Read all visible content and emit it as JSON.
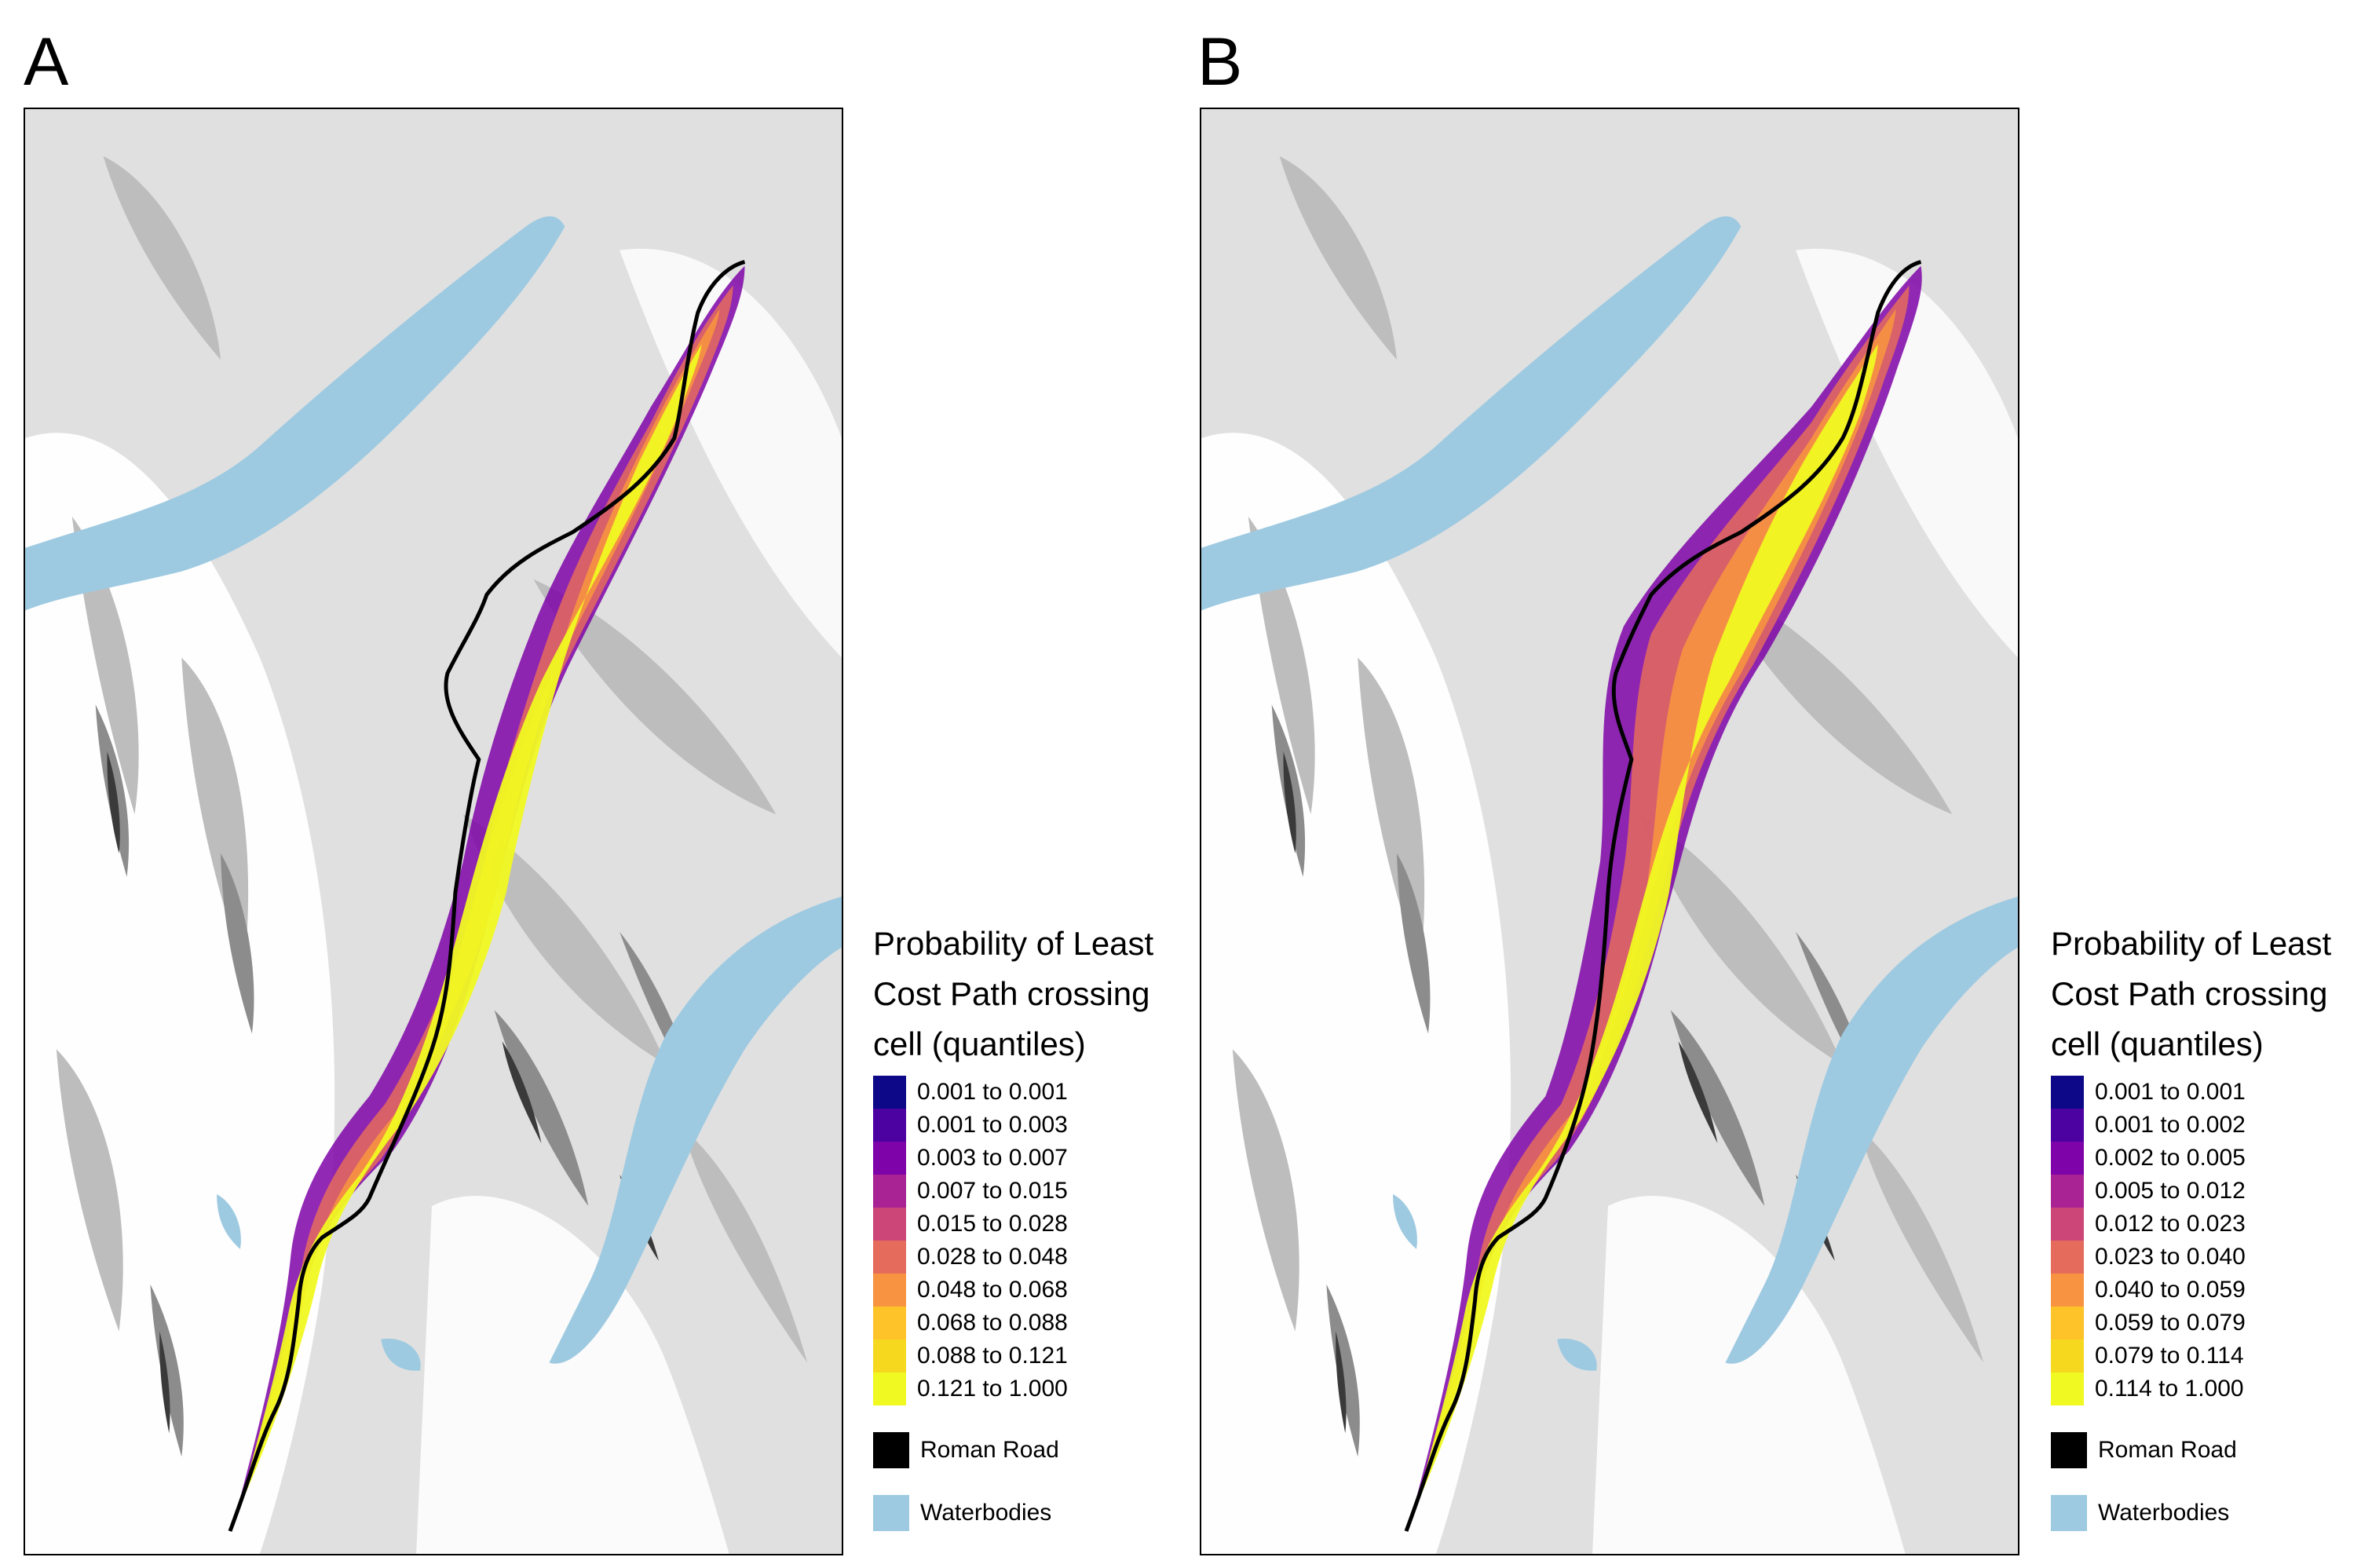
{
  "panels": [
    {
      "label": "A",
      "legend": {
        "title_lines": [
          "Probability of Least",
          "Cost Path crossing",
          "cell (quantiles)"
        ],
        "classes": [
          "0.001 to 0.001",
          "0.001 to 0.003",
          "0.003 to 0.007",
          "0.007 to 0.015",
          "0.015 to 0.028",
          "0.028 to 0.048",
          "0.048 to 0.068",
          "0.068 to 0.088",
          "0.088 to 0.121",
          "0.121 to 1.000"
        ],
        "road_label": "Roman Road",
        "water_label": "Waterbodies"
      }
    },
    {
      "label": "B",
      "legend": {
        "title_lines": [
          "Probability of Least",
          "Cost Path crossing",
          "cell (quantiles)"
        ],
        "classes": [
          "0.001 to 0.001",
          "0.001 to 0.002",
          "0.002 to 0.005",
          "0.005 to 0.012",
          "0.012 to 0.023",
          "0.023 to 0.040",
          "0.040 to 0.059",
          "0.059 to 0.079",
          "0.079 to 0.114",
          "0.114 to 1.000"
        ],
        "road_label": "Roman Road",
        "water_label": "Waterbodies"
      }
    }
  ],
  "colors": {
    "class_colors": [
      "#0d0887",
      "#4c02a1",
      "#7e03a8",
      "#a92395",
      "#cc4778",
      "#e56b5d",
      "#f89441",
      "#fdc328",
      "#f6d91f",
      "#f0f921"
    ],
    "road": "#000000",
    "water": "#9ecae1",
    "terrain_light": "#e0e0e0",
    "terrain_mid": "#bdbdbd",
    "terrain_dark": "#8c8c8c",
    "terrain_darkest": "#3a3a3a"
  }
}
